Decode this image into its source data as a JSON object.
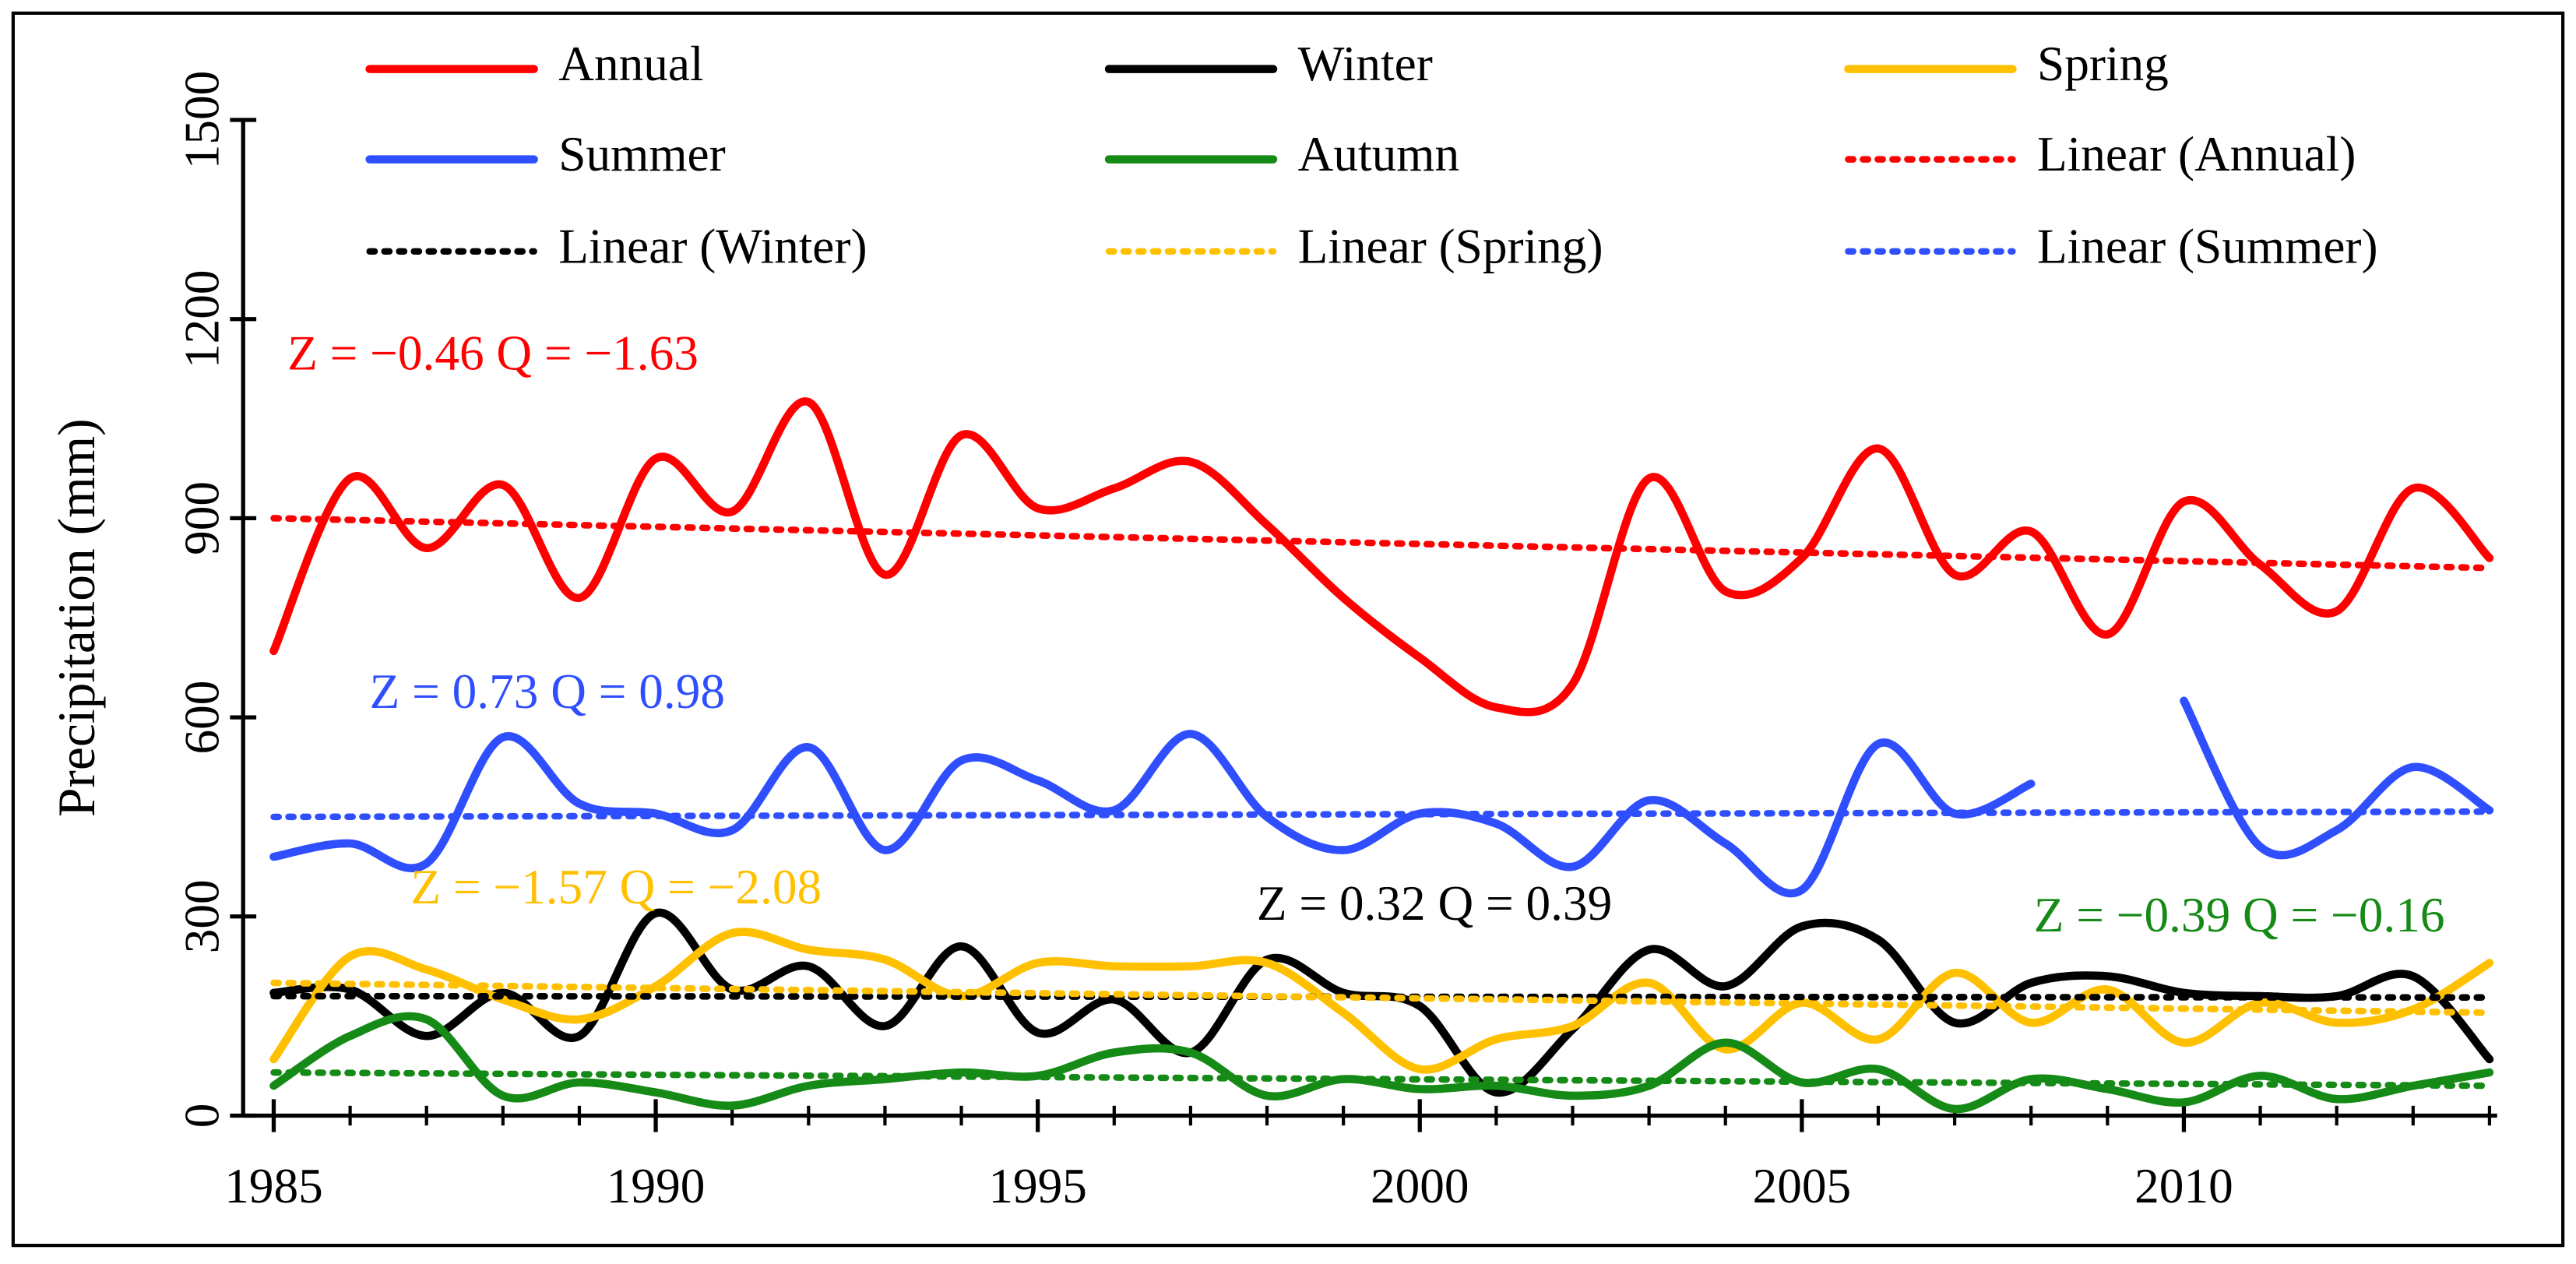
{
  "chart_data": {
    "type": "line",
    "y_label": "Precipitation (mm)",
    "x": [
      1985,
      1986,
      1987,
      1988,
      1989,
      1990,
      1991,
      1992,
      1993,
      1994,
      1995,
      1996,
      1997,
      1998,
      1999,
      2000,
      2001,
      2002,
      2003,
      2004,
      2005,
      2006,
      2007,
      2008,
      2009,
      2010,
      2011,
      2012,
      2013,
      2014
    ],
    "xlim": [
      1984.6,
      2014.1
    ],
    "xticks": [
      1985,
      1990,
      1995,
      2000,
      2005,
      2010
    ],
    "ylim": [
      0,
      1500
    ],
    "yticks": [
      0,
      300,
      600,
      900,
      1200,
      1500
    ],
    "series": [
      {
        "name": "Annual",
        "color": "#ff0000",
        "dash": false,
        "values": [
          700,
          960,
          855,
          950,
          780,
          990,
          910,
          1075,
          815,
          1025,
          915,
          945,
          985,
          890,
          780,
          690,
          615,
          650,
          960,
          790,
          840,
          1005,
          815,
          880,
          725,
          925,
          830,
          760,
          945,
          840
        ]
      },
      {
        "name": "Winter",
        "color": "#000000",
        "dash": false,
        "values": [
          185,
          190,
          120,
          185,
          120,
          305,
          190,
          225,
          135,
          255,
          125,
          175,
          95,
          235,
          185,
          165,
          35,
          130,
          250,
          195,
          285,
          265,
          140,
          200,
          210,
          185,
          180,
          180,
          210,
          85
        ]
      },
      {
        "name": "Spring",
        "color": "#ffc000",
        "dash": false,
        "values": [
          85,
          240,
          220,
          175,
          145,
          195,
          275,
          250,
          235,
          180,
          230,
          225,
          225,
          230,
          155,
          70,
          115,
          135,
          200,
          100,
          170,
          115,
          215,
          140,
          190,
          110,
          170,
          140,
          160,
          230
        ]
      },
      {
        "name": "Summer",
        "color": "#2f4fff",
        "dash": false,
        "values": [
          390,
          410,
          380,
          570,
          470,
          455,
          430,
          555,
          400,
          535,
          505,
          460,
          575,
          450,
          400,
          455,
          440,
          375,
          475,
          410,
          340,
          560,
          455,
          500,
          null,
          625,
          405,
          430,
          525,
          460
        ]
      },
      {
        "name": "Autumn",
        "color": "#168a16",
        "dash": false,
        "values": [
          45,
          120,
          145,
          30,
          50,
          35,
          15,
          45,
          55,
          65,
          60,
          95,
          95,
          30,
          55,
          40,
          45,
          30,
          45,
          110,
          50,
          70,
          10,
          55,
          40,
          20,
          60,
          25,
          45,
          65
        ]
      },
      {
        "name": "Linear (Annual)",
        "color": "#ff0000",
        "dash": true,
        "x": [
          1985,
          2014
        ],
        "values": [
          900,
          825
        ]
      },
      {
        "name": "Linear (Winter)",
        "color": "#000000",
        "dash": true,
        "x": [
          1985,
          2014
        ],
        "values": [
          180,
          178
        ]
      },
      {
        "name": "Linear (Spring)",
        "color": "#ffc000",
        "dash": true,
        "x": [
          1985,
          2014
        ],
        "values": [
          200,
          155
        ]
      },
      {
        "name": "Linear (Summer)",
        "color": "#2f4fff",
        "dash": true,
        "x": [
          1985,
          2014
        ],
        "values": [
          450,
          458
        ]
      },
      {
        "name": null,
        "color": "#168a16",
        "dash": true,
        "x": [
          1985,
          2014
        ],
        "values": [
          65,
          45
        ]
      }
    ],
    "annotations": [
      {
        "text": "Z = −0.46  Q = −1.63",
        "color": "#ff0000"
      },
      {
        "text": "Z = 0.73  Q = 0.98",
        "color": "#2f4fff"
      },
      {
        "text": "Z = −1.57  Q = −2.08",
        "color": "#ffc000"
      },
      {
        "text": "Z = 0.32  Q = 0.39",
        "color": "#000000"
      },
      {
        "text": "Z = −0.39  Q = −0.16",
        "color": "#168a16"
      }
    ]
  }
}
